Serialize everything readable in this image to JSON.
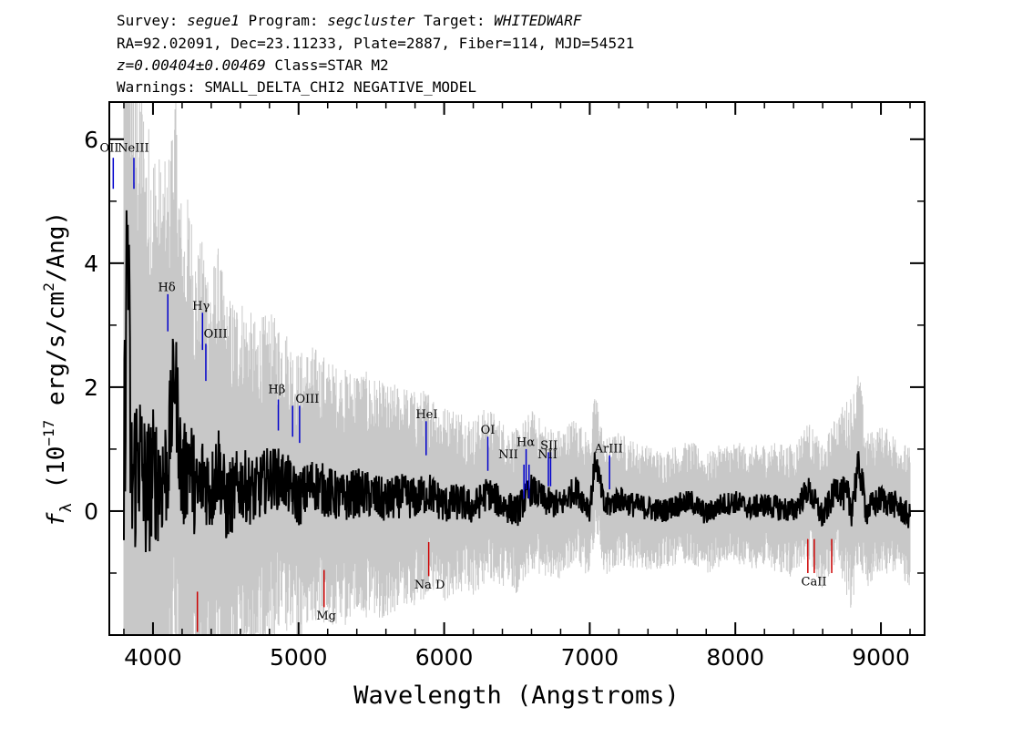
{
  "header": {
    "line1": {
      "survey_label": "Survey: ",
      "survey": "segue1",
      "program_label": " Program: ",
      "program": "segcluster",
      "target_label": " Target: ",
      "target": "WHITEDWARF"
    },
    "line2": "RA=92.02091, Dec=23.11233, Plate=2887, Fiber=114, MJD=54521",
    "line3": {
      "z": "z=0.00404±0.00469",
      "class": " Class=STAR M2"
    },
    "line4": "Warnings: SMALL_DELTA_CHI2 NEGATIVE_MODEL"
  },
  "chart_data": {
    "type": "line",
    "xlabel": "Wavelength (Angstroms)",
    "ylabel": "fλ (10⁻¹⁷ erg/s/cm²/Ang)",
    "ylabel_parts": {
      "f": "f",
      "sub": "λ",
      "pre": " (10",
      "exp1": "−17",
      "mid": " erg/s/cm",
      "exp2": "2",
      "post": "/Ang)"
    },
    "xlim": [
      3700,
      9300
    ],
    "ylim": [
      -2.0,
      6.6
    ],
    "x_ticks": [
      4000,
      5000,
      6000,
      7000,
      8000,
      9000
    ],
    "x_tick_labels": [
      "4000",
      "5000",
      "6000",
      "7000",
      "8000",
      "9000"
    ],
    "y_ticks": [
      0,
      2,
      4,
      6
    ],
    "y_tick_labels": [
      "0",
      "2",
      "4",
      "6"
    ],
    "grid": false,
    "colors": {
      "flux": "#000000",
      "error": "#c8c8c8",
      "emission": "#0000cc",
      "absorption": "#cc0000"
    },
    "series": [
      {
        "role": "flux",
        "x": [
          3800,
          3825,
          3850,
          3900,
          3950,
          4000,
          4050,
          4100,
          4150,
          4200,
          4250,
          4300,
          4350,
          4400,
          4450,
          4500,
          4600,
          4700,
          4800,
          4900,
          5000,
          5100,
          5200,
          5300,
          5400,
          5500,
          5600,
          5700,
          5800,
          5900,
          6000,
          6100,
          6200,
          6300,
          6400,
          6500,
          6600,
          6700,
          6800,
          6900,
          7000,
          7040,
          7100,
          7200,
          7300,
          7400,
          7500,
          7600,
          7700,
          7800,
          7900,
          8000,
          8100,
          8200,
          8300,
          8400,
          8500,
          8600,
          8700,
          8800,
          8850,
          8900,
          9000,
          9100,
          9200
        ],
        "y": [
          0.4,
          4.9,
          0.3,
          1.0,
          0.3,
          0.6,
          0.5,
          0.7,
          2.3,
          0.4,
          0.9,
          0.2,
          0.6,
          0.3,
          0.8,
          0.1,
          0.45,
          0.3,
          0.55,
          0.5,
          0.2,
          0.45,
          0.3,
          0.2,
          0.3,
          0.25,
          0.15,
          0.25,
          0.2,
          0.3,
          0.1,
          0.15,
          0.05,
          0.3,
          0.1,
          0.0,
          0.35,
          0.15,
          0.1,
          0.35,
          0.05,
          0.85,
          0.05,
          0.2,
          0.1,
          0.05,
          0.0,
          0.1,
          0.15,
          -0.05,
          0.1,
          0.15,
          0.05,
          0.1,
          0.05,
          0.0,
          0.35,
          -0.1,
          0.4,
          0.1,
          0.75,
          0.0,
          0.2,
          0.1,
          -0.1
        ]
      },
      {
        "role": "error",
        "x": [
          3800,
          3850,
          3900,
          4000,
          4100,
          4200,
          4300,
          4400,
          4500,
          4700,
          4900,
          5100,
          5300,
          5500,
          5700,
          5900,
          6100,
          6300,
          6500,
          6700,
          6900,
          7100,
          7300,
          7500,
          7700,
          7900,
          8100,
          8300,
          8500,
          8700,
          8800,
          8900,
          9000,
          9200
        ],
        "y": [
          6.6,
          5.6,
          4.8,
          4.0,
          3.5,
          3.2,
          2.9,
          2.6,
          2.4,
          2.0,
          1.8,
          1.6,
          1.5,
          1.4,
          1.3,
          1.2,
          1.1,
          1.0,
          0.95,
          0.9,
          0.85,
          0.8,
          0.75,
          0.7,
          0.7,
          0.7,
          0.7,
          0.75,
          0.8,
          0.85,
          1.3,
          0.9,
          0.85,
          0.8
        ]
      }
    ],
    "line_markers": [
      {
        "label": "OII",
        "x": 3727,
        "kind": "emission",
        "top": 5.7,
        "bottom": 5.2
      },
      {
        "label": "NeIII",
        "x": 3869,
        "kind": "emission",
        "top": 5.7,
        "bottom": 5.2
      },
      {
        "label": "Hδ",
        "x": 4102,
        "kind": "emission",
        "top": 3.5,
        "bottom": 2.9
      },
      {
        "label": "Hγ",
        "x": 4340,
        "kind": "emission",
        "top": 3.2,
        "bottom": 2.6
      },
      {
        "label": "OIII",
        "x": 4363,
        "kind": "emission",
        "top": 2.7,
        "bottom": 2.1
      },
      {
        "label": "Hβ",
        "x": 4861,
        "kind": "emission",
        "top": 1.8,
        "bottom": 1.3
      },
      {
        "label": "OIII",
        "x": 4959,
        "kind": "emission",
        "top": 1.7,
        "bottom": 1.2
      },
      {
        "label": "OIII",
        "x": 5007,
        "kind": "emission",
        "top": 1.7,
        "bottom": 1.1
      },
      {
        "label": "HeI",
        "x": 5876,
        "kind": "emission",
        "top": 1.45,
        "bottom": 0.9
      },
      {
        "label": "OI",
        "x": 6300,
        "kind": "emission",
        "top": 1.2,
        "bottom": 0.65
      },
      {
        "label": "NII",
        "x": 6548,
        "kind": "emission",
        "top": 0.75,
        "bottom": 0.2
      },
      {
        "label": "Hα",
        "x": 6563,
        "kind": "emission",
        "top": 1.0,
        "bottom": 0.35
      },
      {
        "label": "NII",
        "x": 6583,
        "kind": "emission",
        "top": 0.75,
        "bottom": 0.2
      },
      {
        "label": "SII",
        "x": 6716,
        "kind": "emission",
        "top": 0.95,
        "bottom": 0.4
      },
      {
        "label": "SII",
        "x": 6731,
        "kind": "emission",
        "top": 0.95,
        "bottom": 0.4
      },
      {
        "label": "ArIII",
        "x": 7136,
        "kind": "emission",
        "top": 0.9,
        "bottom": 0.35
      },
      {
        "label": "",
        "x": 4305,
        "kind": "absorption",
        "top": -1.3,
        "bottom": -1.95
      },
      {
        "label": "Mg",
        "x": 5175,
        "kind": "absorption",
        "top": -0.95,
        "bottom": -1.55
      },
      {
        "label": "Na D",
        "x": 5894,
        "kind": "absorption",
        "top": -0.5,
        "bottom": -1.05
      },
      {
        "label": "",
        "x": 8498,
        "kind": "absorption",
        "top": -0.45,
        "bottom": -1.0
      },
      {
        "label": "CaII",
        "x": 8542,
        "kind": "absorption",
        "top": -0.45,
        "bottom": -1.0
      },
      {
        "label": "",
        "x": 8662,
        "kind": "absorption",
        "top": -0.45,
        "bottom": -1.0
      }
    ],
    "marker_labels": [
      {
        "text": "OII",
        "x": 3700,
        "y": 5.8
      },
      {
        "text": "NeIII",
        "x": 3865,
        "y": 5.8
      },
      {
        "text": "Hδ",
        "x": 4095,
        "y": 3.55
      },
      {
        "text": "Hγ",
        "x": 4330,
        "y": 3.25
      },
      {
        "text": "OIII",
        "x": 4430,
        "y": 2.8
      },
      {
        "text": "Hβ",
        "x": 4850,
        "y": 1.9
      },
      {
        "text": "OIII",
        "x": 5060,
        "y": 1.75
      },
      {
        "text": "HeI",
        "x": 5880,
        "y": 1.5
      },
      {
        "text": "OI",
        "x": 6300,
        "y": 1.25
      },
      {
        "text": "NII",
        "x": 6440,
        "y": 0.85
      },
      {
        "text": "Hα",
        "x": 6560,
        "y": 1.05
      },
      {
        "text": "SII",
        "x": 6720,
        "y": 1.0
      },
      {
        "text": "NII",
        "x": 6710,
        "y": 0.85
      },
      {
        "text": "ArIII",
        "x": 7130,
        "y": 0.95
      },
      {
        "text": "Mg",
        "x": 5190,
        "y": -1.75
      },
      {
        "text": "Na D",
        "x": 5900,
        "y": -1.25
      },
      {
        "text": "CaII",
        "x": 8540,
        "y": -1.2
      }
    ]
  }
}
